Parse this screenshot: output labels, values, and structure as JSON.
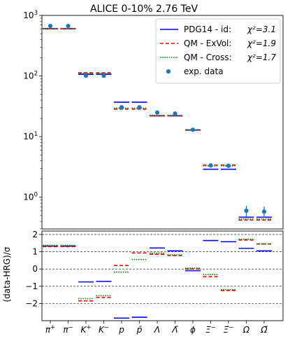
{
  "chart_data": [
    {
      "type": "scatter",
      "title": "ALICE 0-10% 2.76 TeV",
      "yscale": "log",
      "ylim": [
        0.3,
        1000
      ],
      "ytick_labels": [
        "10^{0}",
        "10^{1}",
        "10^{2}",
        "10^{3}"
      ],
      "categories": [
        "π+",
        "π−",
        "K+",
        "K−",
        "p",
        "p̄",
        "Λ",
        "Λ̄",
        "ϕ",
        "Ξ−",
        "Ξ̄−",
        "Ω",
        "Ω̄"
      ],
      "legend": {
        "location": "top-right",
        "entries": [
          {
            "label": "PDG14 - id:",
            "chi2_label": "χ²=3.1"
          },
          {
            "label": "QM - ExVol:",
            "chi2_label": "χ²=1.9"
          },
          {
            "label": "QM - Cross:",
            "chi2_label": "χ²=1.7"
          },
          {
            "label": "exp. data"
          }
        ]
      },
      "series": [
        {
          "name": "PDG14 - id:",
          "color": "#0000ff",
          "style": "solid",
          "values": [
            600,
            600,
            107,
            107,
            37,
            37,
            22,
            22,
            12.8,
            2.9,
            2.9,
            0.47,
            0.47
          ]
        },
        {
          "name": "QM - ExVol:",
          "color": "#ff0000",
          "style": "dashed",
          "values": [
            600,
            600,
            113,
            113,
            28.5,
            28.5,
            22,
            22,
            13,
            3.4,
            3.4,
            0.42,
            0.42
          ]
        },
        {
          "name": "QM - Cross:",
          "color": "#008000",
          "style": "dotted",
          "values": [
            610,
            610,
            110,
            110,
            29.5,
            29.5,
            22.5,
            22.5,
            13,
            3.3,
            3.3,
            0.44,
            0.44
          ]
        },
        {
          "name": "exp. data",
          "color": "#1f77b4",
          "style": "point",
          "values": [
            670,
            670,
            101,
            101,
            30.5,
            30.5,
            25,
            24,
            13,
            3.35,
            3.3,
            0.6,
            0.58
          ],
          "errors": [
            30,
            30,
            5,
            5,
            1.5,
            1.5,
            2,
            2,
            1,
            0.15,
            0.15,
            0.12,
            0.12
          ]
        }
      ]
    },
    {
      "type": "scatter",
      "ylabel": "(data-HRG)/σ",
      "ylim": [
        -3.0,
        2.2
      ],
      "yticks": [
        -2,
        -1,
        0,
        1,
        2
      ],
      "ytick_labels": [
        "−2",
        "−1",
        "0",
        "1",
        "2"
      ],
      "grid": "dashed horizontal lines at -2, -1, 0, 1, 2",
      "categories": [
        "π+",
        "π−",
        "K+",
        "K−",
        "p",
        "p̄",
        "Λ",
        "Λ̄",
        "ϕ",
        "Ξ−",
        "Ξ̄−",
        "Ω",
        "Ω̄"
      ],
      "series": [
        {
          "name": "PDG14 - id:",
          "color": "#0000ff",
          "style": "solid",
          "values": [
            1.33,
            1.33,
            -0.75,
            -0.72,
            -2.85,
            -2.8,
            1.22,
            1.05,
            -0.1,
            1.65,
            1.58,
            1.2,
            1.05
          ]
        },
        {
          "name": "QM - ExVol:",
          "color": "#ff0000",
          "style": "dashed",
          "values": [
            1.3,
            1.3,
            -1.85,
            -1.65,
            0.2,
            0.93,
            0.85,
            0.78,
            0.0,
            -0.45,
            -1.25,
            1.68,
            1.45
          ]
        },
        {
          "name": "QM - Cross:",
          "color": "#008000",
          "style": "dotted",
          "values": [
            1.37,
            1.37,
            -1.72,
            -1.55,
            -0.18,
            0.55,
            0.92,
            0.82,
            0.05,
            -0.32,
            -1.2,
            1.73,
            1.45
          ]
        }
      ]
    }
  ]
}
